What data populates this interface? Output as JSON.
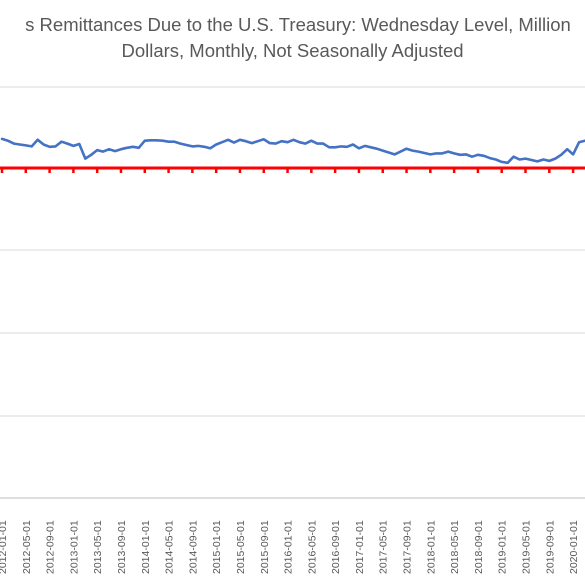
{
  "chart_data": {
    "type": "line",
    "title_line_1": "s Remittances Due to the U.S. Treasury: Wednesday Level, Million",
    "title_line_2": "Dollars, Monthly, Not Seasonally Adjusted",
    "xlabel": "",
    "ylabel": "",
    "x_tick_labels": [
      "2012-01-01",
      "2012-05-01",
      "2012-09-01",
      "2013-01-01",
      "2013-05-01",
      "2013-09-01",
      "2014-01-01",
      "2014-05-01",
      "2014-09-01",
      "2015-01-01",
      "2015-05-01",
      "2015-09-01",
      "2016-01-01",
      "2016-05-01",
      "2016-09-01",
      "2017-01-01",
      "2017-05-01",
      "2017-09-01",
      "2018-01-01",
      "2018-05-01",
      "2018-09-01",
      "2019-01-01",
      "2019-05-01",
      "2019-09-01",
      "2020-01-01"
    ],
    "grid": true,
    "horizontal_gridline_count": 5,
    "series": [
      {
        "color": "#4472c4",
        "x_start": "2012-01-01",
        "x_end": "2020-03-01",
        "frequency": "monthly",
        "relative_levels": [
          0.62,
          0.58,
          0.52,
          0.5,
          0.48,
          0.46,
          0.6,
          0.5,
          0.45,
          0.46,
          0.56,
          0.52,
          0.47,
          0.51,
          0.2,
          0.28,
          0.38,
          0.35,
          0.4,
          0.36,
          0.4,
          0.43,
          0.45,
          0.43,
          0.58,
          0.59,
          0.59,
          0.58,
          0.56,
          0.56,
          0.52,
          0.49,
          0.46,
          0.47,
          0.45,
          0.42,
          0.5,
          0.55,
          0.6,
          0.54,
          0.6,
          0.57,
          0.53,
          0.57,
          0.61,
          0.53,
          0.52,
          0.57,
          0.55,
          0.6,
          0.55,
          0.52,
          0.58,
          0.52,
          0.52,
          0.44,
          0.44,
          0.46,
          0.45,
          0.5,
          0.42,
          0.47,
          0.44,
          0.41,
          0.37,
          0.33,
          0.29,
          0.35,
          0.41,
          0.37,
          0.35,
          0.32,
          0.29,
          0.31,
          0.31,
          0.35,
          0.31,
          0.28,
          0.29,
          0.24,
          0.28,
          0.26,
          0.21,
          0.18,
          0.13,
          0.11,
          0.24,
          0.18,
          0.2,
          0.17,
          0.14,
          0.18,
          0.15,
          0.2,
          0.28,
          0.4,
          0.29,
          0.55,
          0.58
        ]
      }
    ],
    "reference_line": {
      "color": "#ff0000",
      "relative_level": 0.0,
      "marker": "dash"
    }
  }
}
